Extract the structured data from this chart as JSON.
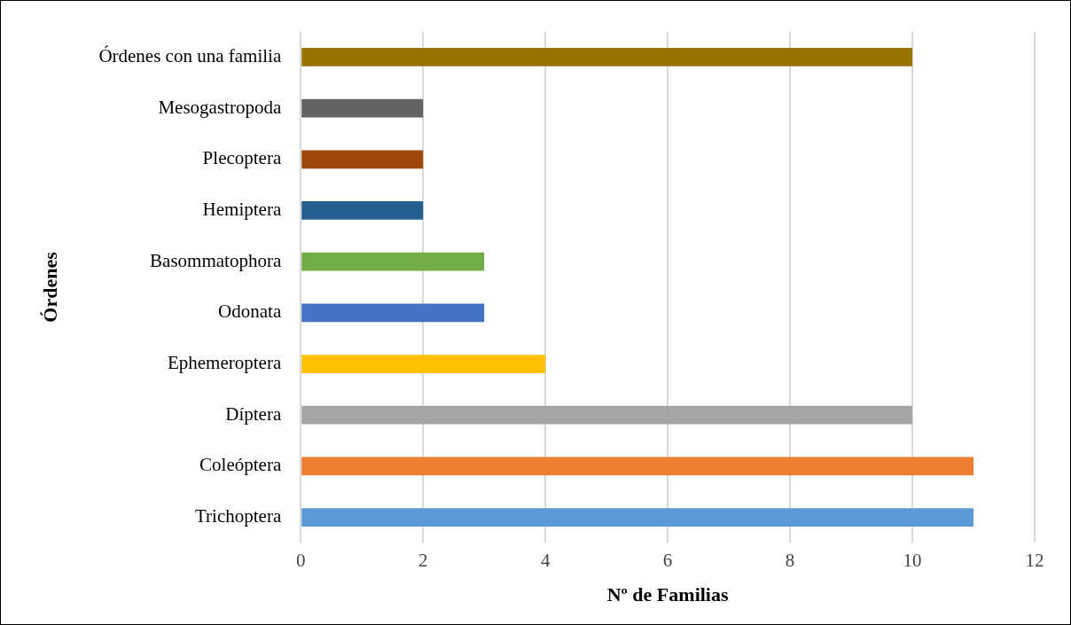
{
  "chart_data": {
    "type": "bar",
    "orientation": "horizontal",
    "xlabel": "Nº de Familias",
    "ylabel": "Órdenes",
    "categories": [
      "Órdenes con una familia",
      "Mesogastropoda",
      "Plecoptera",
      "Hemiptera",
      "Basommatophora",
      "Odonata",
      "Ephemeroptera",
      "Díptera",
      "Coleóptera",
      "Trichoptera"
    ],
    "values": [
      10,
      2,
      2,
      2,
      3,
      3,
      4,
      10,
      11,
      11
    ],
    "colors": [
      "#997300",
      "#636363",
      "#9e480e",
      "#255e91",
      "#70ad47",
      "#4472c4",
      "#ffc000",
      "#a5a5a5",
      "#ed7d31",
      "#5b9bd5"
    ],
    "xlim": [
      0,
      12
    ],
    "xticks": [
      0,
      2,
      4,
      6,
      8,
      10,
      12
    ],
    "grid": "x",
    "legend": false
  }
}
